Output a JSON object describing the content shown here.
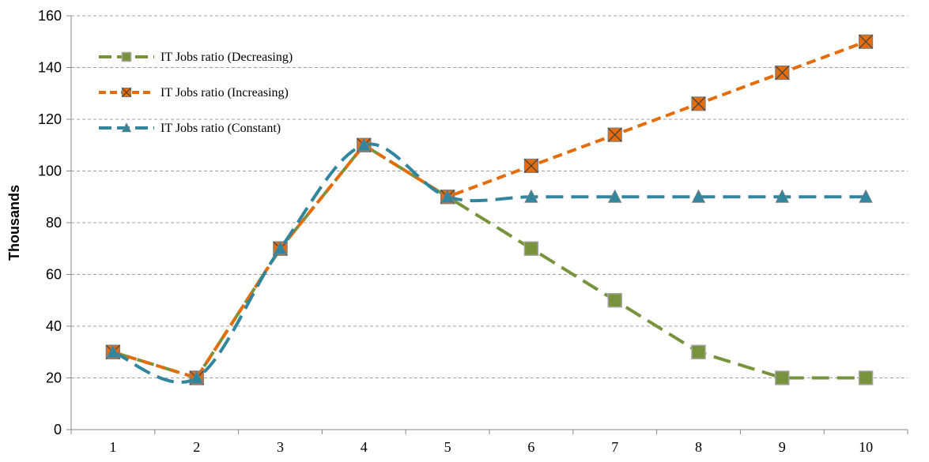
{
  "chart_data": {
    "type": "line",
    "title": "",
    "xlabel": "",
    "ylabel": "Thousands",
    "x": [
      1,
      2,
      3,
      4,
      5,
      6,
      7,
      8,
      9,
      10
    ],
    "ylim": [
      0,
      160
    ],
    "yticks": [
      0,
      20,
      40,
      60,
      80,
      100,
      120,
      140,
      160
    ],
    "grid": "horizontal-dashed",
    "legend_position": "top-left",
    "series": [
      {
        "name": "IT Jobs ratio (Decreasing)",
        "values": [
          30,
          20,
          70,
          110,
          90,
          70,
          50,
          30,
          20,
          20
        ],
        "color": "#77933c",
        "marker": "square",
        "dash": "long-dash"
      },
      {
        "name": "IT Jobs ratio (Increasing)",
        "values": [
          30,
          20,
          70,
          110,
          90,
          102,
          114,
          126,
          138,
          150
        ],
        "color": "#e46c0a",
        "marker": "square-x",
        "dash": "dash"
      },
      {
        "name": "IT Jobs ratio (Constant)",
        "values": [
          30,
          20,
          70,
          110,
          90,
          90,
          90,
          90,
          90,
          90
        ],
        "color": "#31859c",
        "marker": "triangle",
        "dash": "long-dash",
        "smooth": true
      }
    ]
  }
}
